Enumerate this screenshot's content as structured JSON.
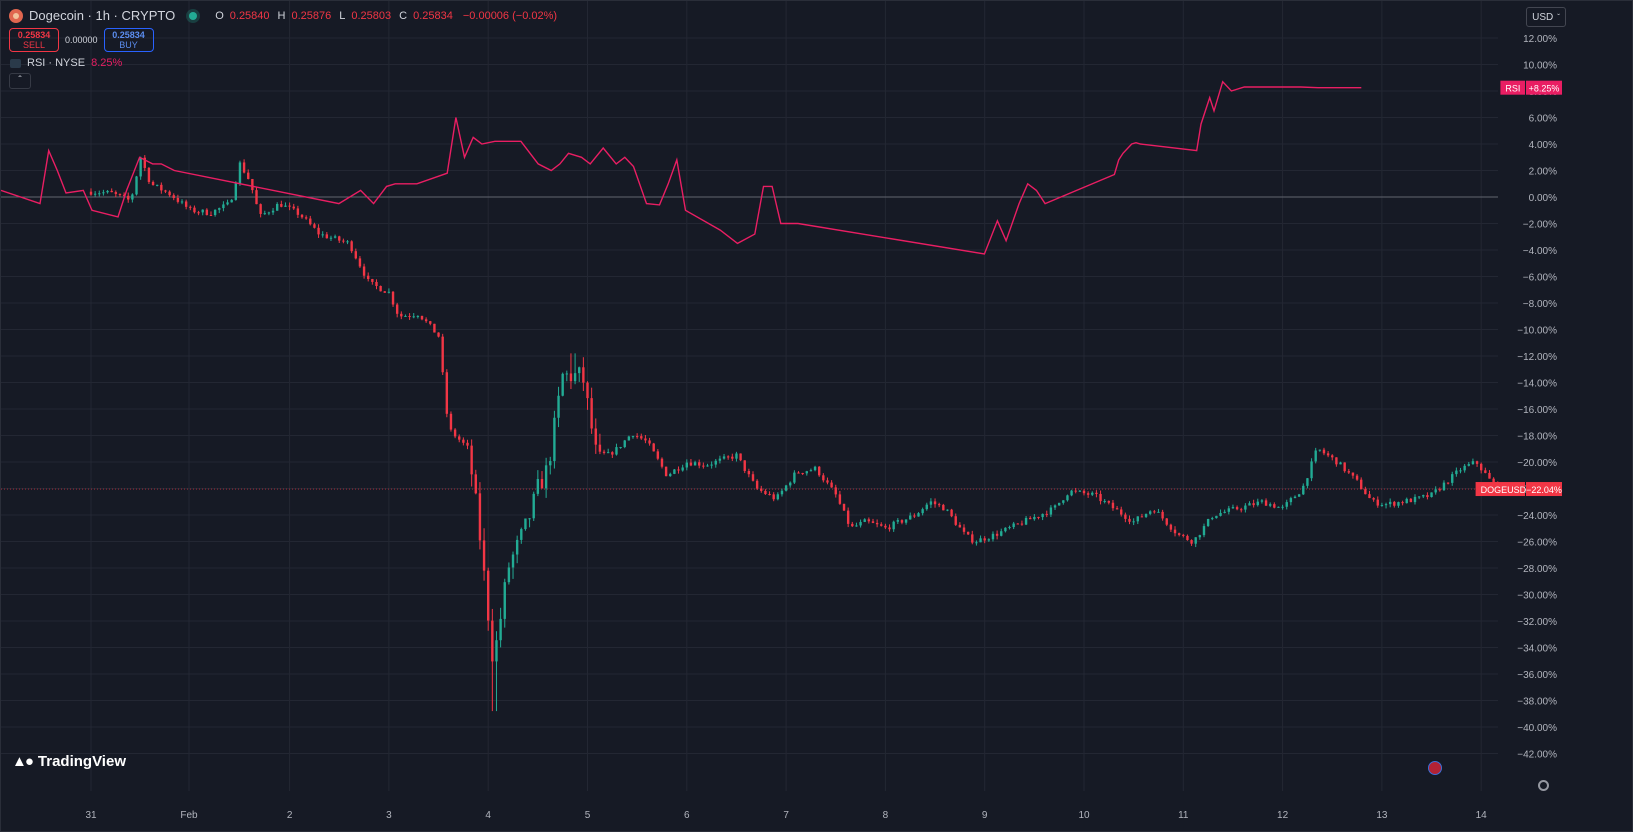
{
  "header": {
    "symbol_title": "Dogecoin · 1h · CRYPTO",
    "ohlc": [
      {
        "key": "O",
        "value": "0.25840"
      },
      {
        "key": "H",
        "value": "0.25876"
      },
      {
        "key": "L",
        "value": "0.25803"
      },
      {
        "key": "C",
        "value": "0.25834"
      }
    ],
    "change": "−0.00006 (−0.02%)"
  },
  "trade": {
    "sell_price": "0.25834",
    "sell_label": "SELL",
    "spread": "0.00000",
    "buy_price": "0.25834",
    "buy_label": "BUY"
  },
  "indicator": {
    "name": "RSI · NYSE",
    "value": "8.25%"
  },
  "currency": "USD",
  "brand": "TradingView",
  "colors": {
    "background": "#161a25",
    "up": "#22ab94",
    "down": "#f23645",
    "rsi": "#e91e63",
    "grid": "#232733"
  },
  "chart_data": [
    {
      "type": "candlestick",
      "name": "DOGEUSD",
      "value_unit": "percent change",
      "ylim": [
        -43,
        13
      ],
      "y_ticks": [
        "12.00%",
        "10.00%",
        "8.00%",
        "6.00%",
        "4.00%",
        "2.00%",
        "0.00%",
        "−2.00%",
        "−4.00%",
        "−6.00%",
        "−8.00%",
        "−10.00%",
        "−12.00%",
        "−14.00%",
        "−16.00%",
        "−18.00%",
        "−20.00%",
        "−22.00%",
        "−24.00%",
        "−26.00%",
        "−28.00%",
        "−30.00%",
        "−32.00%",
        "−34.00%",
        "−36.00%",
        "−38.00%",
        "−40.00%",
        "−42.00%"
      ],
      "x_ticks": [
        "31",
        "Feb",
        "2",
        "3",
        "4",
        "5",
        "6",
        "7",
        "8",
        "9",
        "10",
        "11",
        "12",
        "13",
        "14"
      ],
      "last_label": "DOGEUSD",
      "last_value": "−22.04%",
      "last": -22.04,
      "close_path": [
        {
          "x": 0.0,
          "y": 0.4
        },
        {
          "x": 0.2,
          "y": 0.3
        },
        {
          "x": 0.4,
          "y": -0.3
        },
        {
          "x": 0.5,
          "y": 3.0
        },
        {
          "x": 0.6,
          "y": 1.0
        },
        {
          "x": 0.8,
          "y": 0.2
        },
        {
          "x": 1.0,
          "y": -1.0
        },
        {
          "x": 1.2,
          "y": -1.2
        },
        {
          "x": 1.4,
          "y": -0.5
        },
        {
          "x": 1.5,
          "y": 2.5
        },
        {
          "x": 1.6,
          "y": 1.2
        },
        {
          "x": 1.7,
          "y": -1.5
        },
        {
          "x": 1.9,
          "y": -0.5
        },
        {
          "x": 2.1,
          "y": -1.3
        },
        {
          "x": 2.3,
          "y": -2.8
        },
        {
          "x": 2.6,
          "y": -3.5
        },
        {
          "x": 2.8,
          "y": -6.5
        },
        {
          "x": 3.0,
          "y": -7.2
        },
        {
          "x": 3.1,
          "y": -9.0
        },
        {
          "x": 3.3,
          "y": -8.8
        },
        {
          "x": 3.5,
          "y": -10.5
        },
        {
          "x": 3.6,
          "y": -17.5
        },
        {
          "x": 3.8,
          "y": -19.0
        },
        {
          "x": 3.9,
          "y": -24.5
        },
        {
          "x": 4.05,
          "y": -35.0
        },
        {
          "x": 4.1,
          "y": -33.0
        },
        {
          "x": 4.2,
          "y": -28.0
        },
        {
          "x": 4.4,
          "y": -24.5
        },
        {
          "x": 4.5,
          "y": -22.0
        },
        {
          "x": 4.6,
          "y": -20.5
        },
        {
          "x": 4.75,
          "y": -13.5
        },
        {
          "x": 4.95,
          "y": -13.5
        },
        {
          "x": 5.1,
          "y": -20.0
        },
        {
          "x": 5.3,
          "y": -19.0
        },
        {
          "x": 5.45,
          "y": -17.8
        },
        {
          "x": 5.6,
          "y": -18.5
        },
        {
          "x": 5.8,
          "y": -21.0
        },
        {
          "x": 6.0,
          "y": -20.0
        },
        {
          "x": 6.2,
          "y": -20.2
        },
        {
          "x": 6.5,
          "y": -19.5
        },
        {
          "x": 6.7,
          "y": -22.0
        },
        {
          "x": 6.9,
          "y": -22.8
        },
        {
          "x": 7.1,
          "y": -20.8
        },
        {
          "x": 7.3,
          "y": -20.5
        },
        {
          "x": 7.5,
          "y": -22.5
        },
        {
          "x": 7.65,
          "y": -25.0
        },
        {
          "x": 7.8,
          "y": -24.5
        },
        {
          "x": 8.0,
          "y": -25.0
        },
        {
          "x": 8.3,
          "y": -24.0
        },
        {
          "x": 8.45,
          "y": -23.0
        },
        {
          "x": 8.6,
          "y": -23.5
        },
        {
          "x": 8.8,
          "y": -25.5
        },
        {
          "x": 8.9,
          "y": -26.0
        },
        {
          "x": 9.1,
          "y": -25.5
        },
        {
          "x": 9.4,
          "y": -24.5
        },
        {
          "x": 9.7,
          "y": -23.5
        },
        {
          "x": 9.85,
          "y": -22.2
        },
        {
          "x": 10.1,
          "y": -22.5
        },
        {
          "x": 10.3,
          "y": -23.5
        },
        {
          "x": 10.5,
          "y": -24.5
        },
        {
          "x": 10.7,
          "y": -23.5
        },
        {
          "x": 10.95,
          "y": -25.5
        },
        {
          "x": 11.1,
          "y": -26.0
        },
        {
          "x": 11.3,
          "y": -24.0
        },
        {
          "x": 11.55,
          "y": -23.5
        },
        {
          "x": 11.8,
          "y": -23.0
        },
        {
          "x": 12.0,
          "y": -23.5
        },
        {
          "x": 12.2,
          "y": -22.0
        },
        {
          "x": 12.35,
          "y": -19.0
        },
        {
          "x": 12.55,
          "y": -20.0
        },
        {
          "x": 12.75,
          "y": -21.5
        },
        {
          "x": 12.9,
          "y": -23.0
        },
        {
          "x": 13.05,
          "y": -23.2
        },
        {
          "x": 13.2,
          "y": -23.0
        },
        {
          "x": 13.35,
          "y": -22.8
        },
        {
          "x": 13.5,
          "y": -22.5
        },
        {
          "x": 13.65,
          "y": -21.5
        },
        {
          "x": 13.8,
          "y": -20.5
        },
        {
          "x": 13.95,
          "y": -20.0
        },
        {
          "x": 14.1,
          "y": -21.5
        },
        {
          "x": 14.2,
          "y": -22.0
        }
      ]
    },
    {
      "type": "line",
      "name": "RSI · NYSE",
      "value_unit": "percent",
      "last_label": "RSI",
      "last_value": "+8.25%",
      "x": [
        0.0,
        0.45,
        0.55,
        0.65,
        0.75,
        0.95,
        1.05,
        1.35,
        1.45,
        1.6,
        1.75,
        1.85,
        2.0,
        3.9,
        4.15,
        4.3,
        4.45,
        4.55,
        4.8,
        5.15,
        5.25,
        5.35,
        5.45,
        5.55,
        5.7,
        6.0,
        6.2,
        6.35,
        6.45,
        6.55,
        6.7,
        6.8,
        6.95,
        7.1,
        7.2,
        7.3,
        7.45,
        7.6,
        7.7,
        7.8,
        7.9,
        8.3,
        8.5,
        8.7,
        8.8,
        8.9,
        9.0,
        9.1,
        9.2,
        11.35,
        11.5,
        11.6,
        11.75,
        11.85,
        11.95,
        12.05,
        12.85,
        12.9,
        12.95,
        13.05,
        13.1,
        13.15,
        13.8,
        13.85,
        13.95,
        14.0,
        14.1,
        14.2,
        14.35,
        14.5,
        14.6,
        14.7,
        14.8,
        15.0,
        15.2,
        15.7
      ],
      "y": [
        0.5,
        -0.5,
        3.5,
        2.0,
        0.3,
        0.5,
        -1.0,
        -1.5,
        0.5,
        3.0,
        2.5,
        2.5,
        2.0,
        -0.5,
        0.5,
        -0.5,
        0.8,
        1.0,
        1.0,
        1.8,
        6.0,
        3.0,
        4.5,
        4.0,
        4.2,
        4.2,
        2.5,
        2.0,
        2.5,
        3.3,
        3.0,
        2.5,
        3.7,
        2.5,
        3.0,
        2.3,
        -0.5,
        -0.6,
        1.0,
        2.8,
        -1.0,
        -2.5,
        -3.5,
        -2.8,
        0.8,
        0.8,
        -2.0,
        -2.0,
        -2.0,
        -4.3,
        -1.8,
        -3.3,
        -0.5,
        1.0,
        0.5,
        -0.5,
        1.7,
        2.8,
        3.3,
        4.0,
        4.1,
        4.0,
        3.5,
        5.5,
        7.5,
        6.5,
        8.7,
        8.0,
        8.3,
        8.3,
        8.3,
        8.3,
        8.3,
        8.3,
        8.25,
        8.25
      ]
    }
  ]
}
